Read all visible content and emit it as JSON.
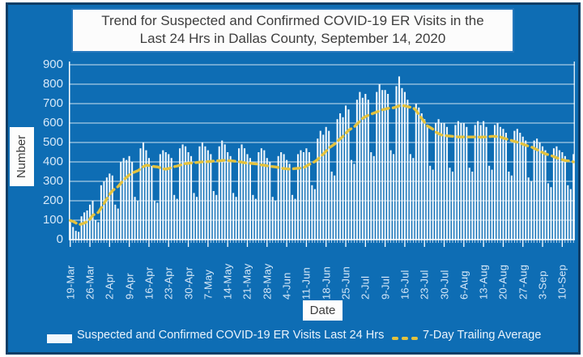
{
  "title": {
    "full": "Trend for Suspected and Confirmed COVID-19 ER Visits in the Last 24 Hrs in Dallas County, September 14, 2020",
    "lines": [
      "Trend for Suspected and Confirmed COVID-19 ER Visits in the",
      "Last 24 Hrs in Dallas County, September 14, 2020"
    ]
  },
  "axes": {
    "x_label": "Date",
    "y_label": "Number"
  },
  "legend": {
    "bar_label": "Suspected and Confirmed COVID-19 ER Visits Last 24 Hrs",
    "line_label": "7-Day Trailing Average"
  },
  "colors": {
    "panel_background": "#0e6db4",
    "panel_border": "#0a3e66",
    "bar": "#f2f8fd",
    "trailing_average_line": "#e3c23e",
    "gridline": "#ffffff",
    "tick_text": "#d6e8f8",
    "title_text": "#3d3d3d"
  },
  "chart_data": {
    "type": "bar",
    "title": "Trend for Suspected and Confirmed COVID-19 ER Visits in the Last 24 Hrs in Dallas County, September 14, 2020",
    "xlabel": "Date",
    "ylabel": "Number",
    "ylim": [
      0,
      900
    ],
    "y_ticks": [
      0,
      100,
      200,
      300,
      400,
      500,
      600,
      700,
      800,
      900
    ],
    "grid": true,
    "legend_position": "bottom",
    "x_tick_labels": [
      "19-Mar",
      "26-Mar",
      "2-Apr",
      "9-Apr",
      "16-Apr",
      "23-Apr",
      "30-Apr",
      "7-May",
      "14-May",
      "21-May",
      "28-May",
      "4-Jun",
      "11-Jun",
      "18-Jun",
      "25-Jun",
      "2-Jul",
      "9-Jul",
      "16-Jul",
      "23-Jul",
      "30-Jul",
      "6-Aug",
      "13-Aug",
      "20-Aug",
      "27-Aug",
      "3-Sep",
      "10-Sep"
    ],
    "x_tick_day_indices": [
      0,
      7,
      14,
      21,
      28,
      35,
      42,
      49,
      56,
      63,
      70,
      77,
      84,
      91,
      98,
      105,
      112,
      119,
      126,
      133,
      140,
      147,
      154,
      161,
      168,
      175
    ],
    "avg_window": 7,
    "avg_seed": 100,
    "series": [
      {
        "name": "Suspected and Confirmed COVID-19 ER Visits Last 24 Hrs",
        "type": "bar",
        "values": [
          90,
          65,
          45,
          40,
          120,
          140,
          150,
          180,
          200,
          100,
          90,
          280,
          300,
          320,
          340,
          330,
          180,
          160,
          400,
          420,
          410,
          430,
          400,
          220,
          200,
          470,
          500,
          460,
          420,
          380,
          200,
          190,
          440,
          460,
          450,
          440,
          420,
          230,
          210,
          470,
          490,
          480,
          450,
          430,
          240,
          220,
          480,
          500,
          480,
          460,
          440,
          250,
          230,
          480,
          510,
          490,
          450,
          430,
          240,
          220,
          470,
          490,
          470,
          440,
          420,
          230,
          210,
          450,
          470,
          460,
          420,
          400,
          220,
          200,
          430,
          450,
          440,
          410,
          390,
          230,
          210,
          440,
          460,
          450,
          470,
          450,
          280,
          260,
          520,
          560,
          540,
          580,
          560,
          350,
          330,
          620,
          650,
          630,
          690,
          670,
          410,
          390,
          720,
          760,
          730,
          750,
          720,
          450,
          430,
          760,
          800,
          770,
          770,
          750,
          460,
          440,
          790,
          840,
          780,
          760,
          720,
          440,
          420,
          700,
          680,
          650,
          620,
          590,
          380,
          360,
          600,
          620,
          600,
          600,
          580,
          370,
          350,
          590,
          610,
          600,
          600,
          580,
          370,
          350,
          590,
          610,
          590,
          610,
          580,
          380,
          360,
          590,
          600,
          580,
          570,
          550,
          350,
          330,
          560,
          570,
          550,
          530,
          510,
          320,
          300,
          510,
          520,
          500,
          480,
          460,
          290,
          270,
          470,
          480,
          460,
          450,
          430,
          280,
          260,
          440
        ]
      },
      {
        "name": "7-Day Trailing Average",
        "type": "line",
        "derived": "7-day trailing average of the daily bar values (seeded at ~100 before 19-Mar)"
      }
    ]
  }
}
